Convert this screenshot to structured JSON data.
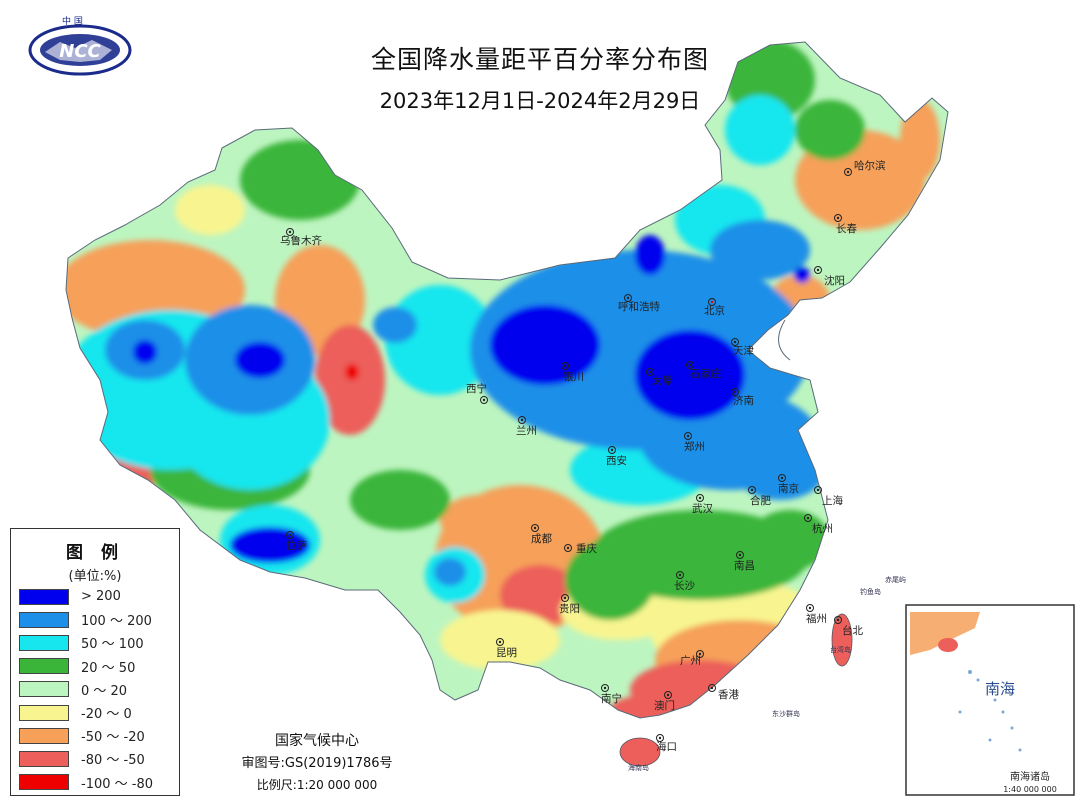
{
  "title": "全国降水量距平百分率分布图",
  "subtitle": "2023年12月1日-2024年2月29日",
  "logo": {
    "text": "NCC",
    "top_text": "中 国"
  },
  "legend": {
    "title": "图 例",
    "unit": "(单位:%)",
    "items": [
      {
        "label": "> 200",
        "color": "#0000ee"
      },
      {
        "label": "100 ～ 200",
        "color": "#1e8fe8"
      },
      {
        "label": "50 ～ 100",
        "color": "#18e6ee"
      },
      {
        "label": "20 ～ 50",
        "color": "#3ab53a"
      },
      {
        "label": "0 ～ 20",
        "color": "#bdf5c0"
      },
      {
        "label": "-20 ～ 0",
        "color": "#f8f590"
      },
      {
        "label": "-50 ～ -20",
        "color": "#f6a05a"
      },
      {
        "label": "-80 ～ -50",
        "color": "#ec5f5a"
      },
      {
        "label": "-100 ～ -80",
        "color": "#ee0000"
      }
    ]
  },
  "credits": {
    "org": "国家气候中心",
    "review": "审图号:GS(2019)1786号",
    "scale": "比例尺:1:20 000 000"
  },
  "cities": [
    {
      "name": "乌鲁木齐"
    },
    {
      "name": "哈尔滨"
    },
    {
      "name": "长春"
    },
    {
      "name": "沈阳"
    },
    {
      "name": "呼和浩特"
    },
    {
      "name": "北京"
    },
    {
      "name": "天津"
    },
    {
      "name": "石家庄"
    },
    {
      "name": "太原"
    },
    {
      "name": "银川"
    },
    {
      "name": "济南"
    },
    {
      "name": "西宁"
    },
    {
      "name": "兰州"
    },
    {
      "name": "郑州"
    },
    {
      "name": "西安"
    },
    {
      "name": "南京"
    },
    {
      "name": "合肥"
    },
    {
      "name": "上海"
    },
    {
      "name": "武汉"
    },
    {
      "name": "杭州"
    },
    {
      "name": "成都"
    },
    {
      "name": "重庆"
    },
    {
      "name": "拉萨"
    },
    {
      "name": "南昌"
    },
    {
      "name": "长沙"
    },
    {
      "name": "贵阳"
    },
    {
      "name": "福州"
    },
    {
      "name": "台北"
    },
    {
      "name": "昆明"
    },
    {
      "name": "广州"
    },
    {
      "name": "南宁"
    },
    {
      "name": "澳门"
    },
    {
      "name": "香港"
    },
    {
      "name": "海口"
    }
  ],
  "seas": {
    "inset_label": "南海",
    "inset_islands": "南海诸岛",
    "inset_scale": "1:40 000 000",
    "taiwan": "台湾岛",
    "hainan": "海南岛",
    "diaoyu": "钓鱼岛",
    "chiwei": "赤尾屿",
    "dongsha": "东沙群岛"
  }
}
